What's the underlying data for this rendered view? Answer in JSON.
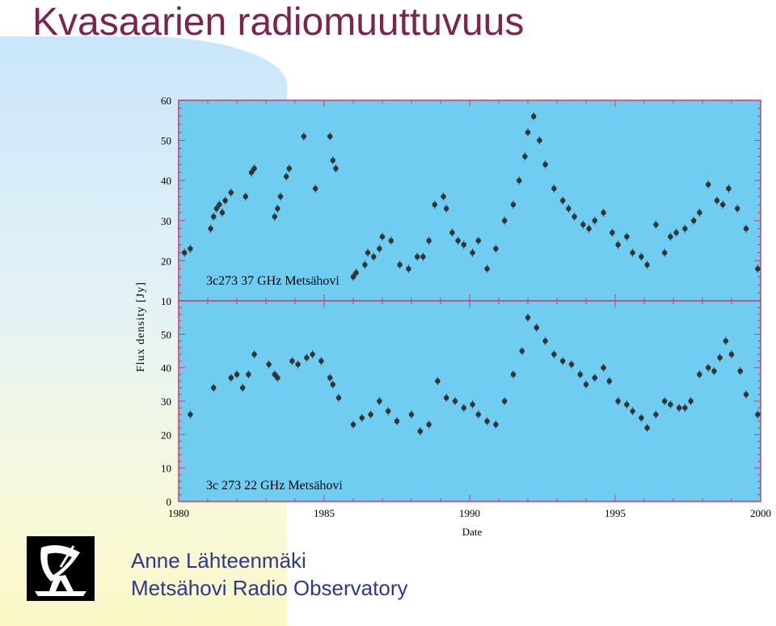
{
  "slide": {
    "title": "Kvasaarien radiomuuttuvuus",
    "author_name": "Anne Lähteenmäki",
    "author_affiliation": "Metsähovi Radio Observatory"
  },
  "colors": {
    "title": "#7a2450",
    "author": "#2e3891",
    "plot_bg": "#6fcdf2",
    "plot_border": "#d13a6b",
    "points": "#333333"
  },
  "icons": {
    "logo": "radio-telescope-icon"
  },
  "chart_data": [
    {
      "type": "scatter",
      "panel": "top",
      "annotation": "3c273  37 GHz Metsähovi",
      "xlim": [
        1980,
        2000
      ],
      "ylim": [
        10,
        60
      ],
      "yticks": [
        10,
        20,
        30,
        40,
        50,
        60
      ],
      "ylabel": "Flux density [Jy]",
      "series": [
        {
          "x": [
            1980.2,
            1980.4,
            1981.1,
            1981.2,
            1981.3,
            1981.4,
            1981.5,
            1981.6,
            1981.8,
            1982.3,
            1982.5,
            1982.6,
            1983.3,
            1983.4,
            1983.5,
            1983.7,
            1983.8,
            1984.3,
            1984.7,
            1985.2,
            1985.3,
            1985.4,
            1986.0,
            1986.1,
            1986.4,
            1986.5,
            1986.7,
            1986.9,
            1987.0,
            1987.3,
            1987.6,
            1987.9,
            1988.2,
            1988.4,
            1988.6,
            1988.8,
            1989.1,
            1989.2,
            1989.4,
            1989.6,
            1989.8,
            1990.1,
            1990.3,
            1990.6,
            1990.9,
            1991.2,
            1991.5,
            1991.7,
            1991.9,
            1992.0,
            1992.2,
            1992.4,
            1992.6,
            1992.9,
            1993.2,
            1993.4,
            1993.6,
            1993.9,
            1994.1,
            1994.3,
            1994.6,
            1994.9,
            1995.1,
            1995.4,
            1995.6,
            1995.9,
            1996.1,
            1996.4,
            1996.7,
            1996.9,
            1997.1,
            1997.4,
            1997.7,
            1997.9,
            1998.2,
            1998.5,
            1998.7,
            1998.9,
            1999.2,
            1999.5,
            1999.9
          ],
          "y": [
            22,
            23,
            28,
            31,
            33,
            34,
            32,
            35,
            37,
            36,
            42,
            43,
            31,
            33,
            36,
            41,
            43,
            51,
            38,
            51,
            45,
            43,
            16,
            17,
            19,
            22,
            21,
            23,
            26,
            25,
            19,
            18,
            21,
            21,
            25,
            34,
            36,
            33,
            27,
            25,
            24,
            22,
            25,
            18,
            23,
            30,
            34,
            40,
            46,
            52,
            56,
            50,
            44,
            38,
            35,
            33,
            31,
            29,
            28,
            30,
            32,
            27,
            24,
            26,
            22,
            21,
            19,
            29,
            22,
            26,
            27,
            28,
            30,
            32,
            39,
            35,
            34,
            38,
            33,
            28,
            18
          ]
        }
      ]
    },
    {
      "type": "scatter",
      "panel": "bottom",
      "annotation": "3c 273  22 GHz Metsähovi",
      "xlim": [
        1980,
        2000
      ],
      "ylim": [
        0,
        60
      ],
      "yticks": [
        0,
        10,
        20,
        30,
        40,
        50
      ],
      "xticks": [
        1980,
        1985,
        1990,
        1995,
        2000
      ],
      "xlabel": "Date",
      "series": [
        {
          "x": [
            1980.4,
            1981.2,
            1981.8,
            1982.0,
            1982.2,
            1982.4,
            1982.6,
            1983.1,
            1983.3,
            1983.4,
            1983.9,
            1984.1,
            1984.4,
            1984.6,
            1984.9,
            1985.2,
            1985.3,
            1985.5,
            1986.0,
            1986.3,
            1986.6,
            1986.9,
            1987.2,
            1987.5,
            1988.0,
            1988.3,
            1988.6,
            1988.9,
            1989.2,
            1989.5,
            1989.8,
            1990.1,
            1990.3,
            1990.6,
            1990.9,
            1991.2,
            1991.5,
            1991.8,
            1992.0,
            1992.3,
            1992.6,
            1992.9,
            1993.2,
            1993.5,
            1993.8,
            1994.0,
            1994.3,
            1994.6,
            1994.8,
            1995.1,
            1995.4,
            1995.6,
            1995.9,
            1996.1,
            1996.4,
            1996.7,
            1996.9,
            1997.2,
            1997.4,
            1997.6,
            1997.9,
            1998.2,
            1998.4,
            1998.6,
            1998.8,
            1999.0,
            1999.3,
            1999.5,
            1999.9
          ],
          "y": [
            26,
            34,
            37,
            38,
            34,
            38,
            44,
            41,
            38,
            37,
            42,
            41,
            43,
            44,
            42,
            37,
            35,
            31,
            23,
            25,
            26,
            30,
            27,
            24,
            26,
            21,
            23,
            36,
            31,
            30,
            28,
            29,
            26,
            24,
            23,
            30,
            38,
            45,
            55,
            52,
            48,
            44,
            42,
            41,
            38,
            35,
            37,
            40,
            36,
            30,
            29,
            27,
            25,
            22,
            26,
            30,
            29,
            28,
            28,
            30,
            38,
            40,
            39,
            43,
            48,
            44,
            39,
            32,
            26
          ]
        }
      ]
    }
  ]
}
